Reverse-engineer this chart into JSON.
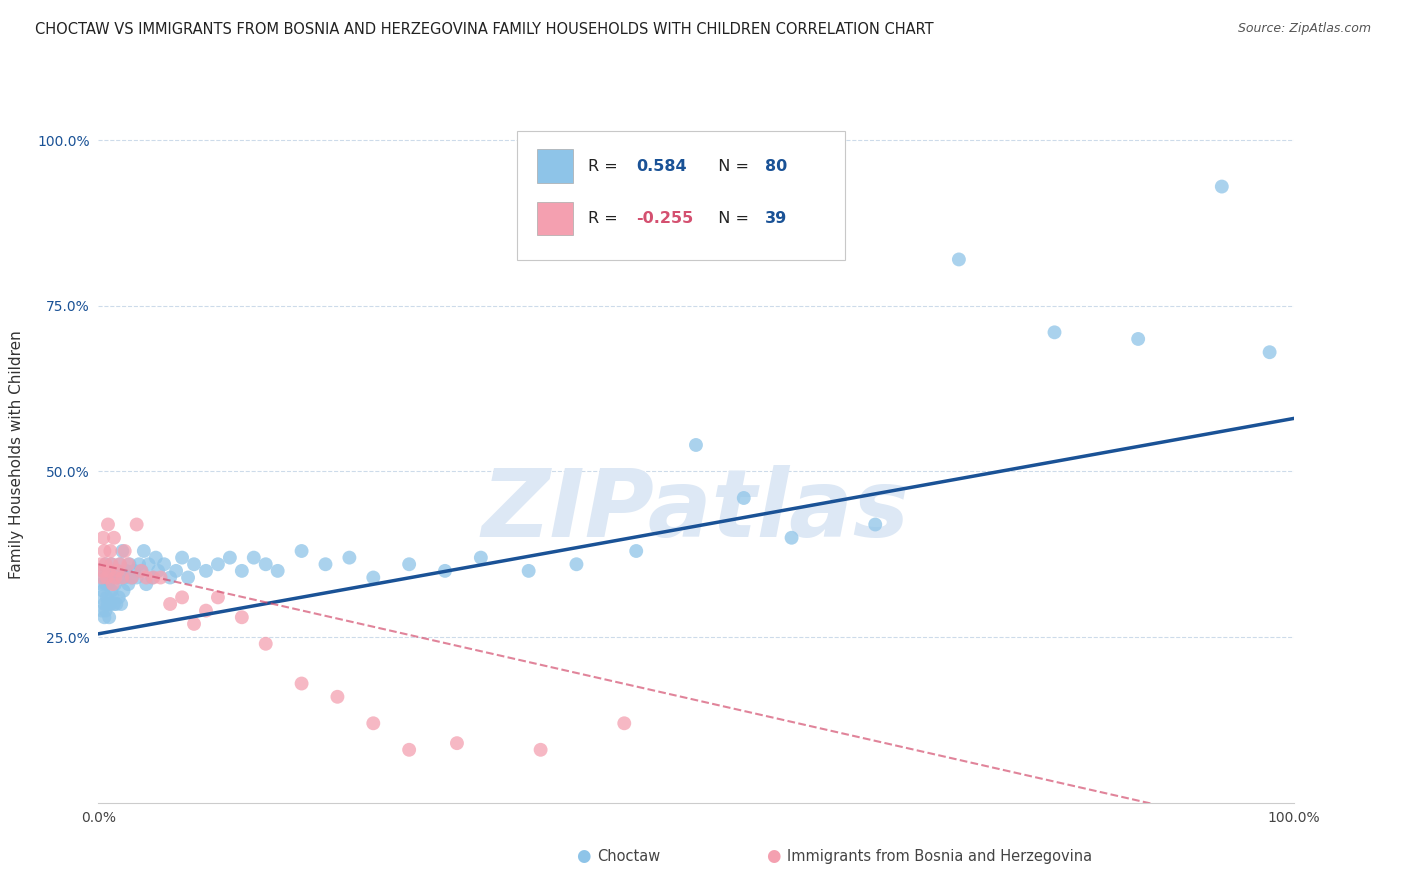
{
  "title": "CHOCTAW VS IMMIGRANTS FROM BOSNIA AND HERZEGOVINA FAMILY HOUSEHOLDS WITH CHILDREN CORRELATION CHART",
  "source": "Source: ZipAtlas.com",
  "ylabel": "Family Households with Children",
  "xlim": [
    0.0,
    1.0
  ],
  "ylim": [
    0.0,
    1.05
  ],
  "yticks": [
    0.25,
    0.5,
    0.75,
    1.0
  ],
  "ytick_labels": [
    "25.0%",
    "50.0%",
    "75.0%",
    "100.0%"
  ],
  "xticks": [
    0.0,
    1.0
  ],
  "xtick_labels": [
    "0.0%",
    "100.0%"
  ],
  "choctaw_R": 0.584,
  "choctaw_N": 80,
  "bosnia_R": -0.255,
  "bosnia_N": 39,
  "choctaw_color": "#8ec4e8",
  "choctaw_line_color": "#1a5296",
  "bosnia_color": "#f4a0b0",
  "bosnia_line_color": "#d45070",
  "background_color": "#ffffff",
  "grid_color": "#c8d8e8",
  "watermark_color": "#dde8f5",
  "choctaw_scatter_x": [
    0.002,
    0.003,
    0.003,
    0.004,
    0.004,
    0.005,
    0.005,
    0.005,
    0.006,
    0.006,
    0.006,
    0.007,
    0.007,
    0.008,
    0.008,
    0.009,
    0.009,
    0.01,
    0.01,
    0.011,
    0.011,
    0.012,
    0.012,
    0.013,
    0.014,
    0.015,
    0.015,
    0.016,
    0.017,
    0.018,
    0.019,
    0.02,
    0.021,
    0.022,
    0.023,
    0.025,
    0.026,
    0.028,
    0.03,
    0.032,
    0.034,
    0.036,
    0.038,
    0.04,
    0.042,
    0.045,
    0.048,
    0.05,
    0.055,
    0.06,
    0.065,
    0.07,
    0.075,
    0.08,
    0.09,
    0.1,
    0.11,
    0.12,
    0.13,
    0.14,
    0.15,
    0.17,
    0.19,
    0.21,
    0.23,
    0.26,
    0.29,
    0.32,
    0.36,
    0.4,
    0.45,
    0.5,
    0.54,
    0.58,
    0.65,
    0.72,
    0.8,
    0.87,
    0.94,
    0.98
  ],
  "choctaw_scatter_y": [
    0.31,
    0.33,
    0.29,
    0.35,
    0.32,
    0.3,
    0.34,
    0.28,
    0.33,
    0.36,
    0.29,
    0.31,
    0.35,
    0.3,
    0.33,
    0.28,
    0.35,
    0.3,
    0.34,
    0.32,
    0.36,
    0.31,
    0.34,
    0.3,
    0.33,
    0.35,
    0.3,
    0.34,
    0.31,
    0.36,
    0.3,
    0.38,
    0.32,
    0.34,
    0.35,
    0.33,
    0.36,
    0.34,
    0.35,
    0.34,
    0.36,
    0.35,
    0.38,
    0.33,
    0.36,
    0.34,
    0.37,
    0.35,
    0.36,
    0.34,
    0.35,
    0.37,
    0.34,
    0.36,
    0.35,
    0.36,
    0.37,
    0.35,
    0.37,
    0.36,
    0.35,
    0.38,
    0.36,
    0.37,
    0.34,
    0.36,
    0.35,
    0.37,
    0.35,
    0.36,
    0.38,
    0.54,
    0.46,
    0.4,
    0.42,
    0.82,
    0.71,
    0.7,
    0.93,
    0.68
  ],
  "bosnia_scatter_x": [
    0.002,
    0.003,
    0.004,
    0.004,
    0.005,
    0.006,
    0.007,
    0.008,
    0.009,
    0.01,
    0.011,
    0.012,
    0.013,
    0.014,
    0.016,
    0.018,
    0.02,
    0.022,
    0.025,
    0.028,
    0.032,
    0.036,
    0.04,
    0.046,
    0.052,
    0.06,
    0.07,
    0.08,
    0.09,
    0.1,
    0.12,
    0.14,
    0.17,
    0.2,
    0.23,
    0.26,
    0.3,
    0.37,
    0.44
  ],
  "bosnia_scatter_y": [
    0.36,
    0.34,
    0.4,
    0.35,
    0.38,
    0.36,
    0.34,
    0.42,
    0.35,
    0.38,
    0.36,
    0.33,
    0.4,
    0.34,
    0.35,
    0.36,
    0.34,
    0.38,
    0.36,
    0.34,
    0.42,
    0.35,
    0.34,
    0.34,
    0.34,
    0.3,
    0.31,
    0.27,
    0.29,
    0.31,
    0.28,
    0.24,
    0.18,
    0.16,
    0.12,
    0.08,
    0.09,
    0.08,
    0.12
  ]
}
